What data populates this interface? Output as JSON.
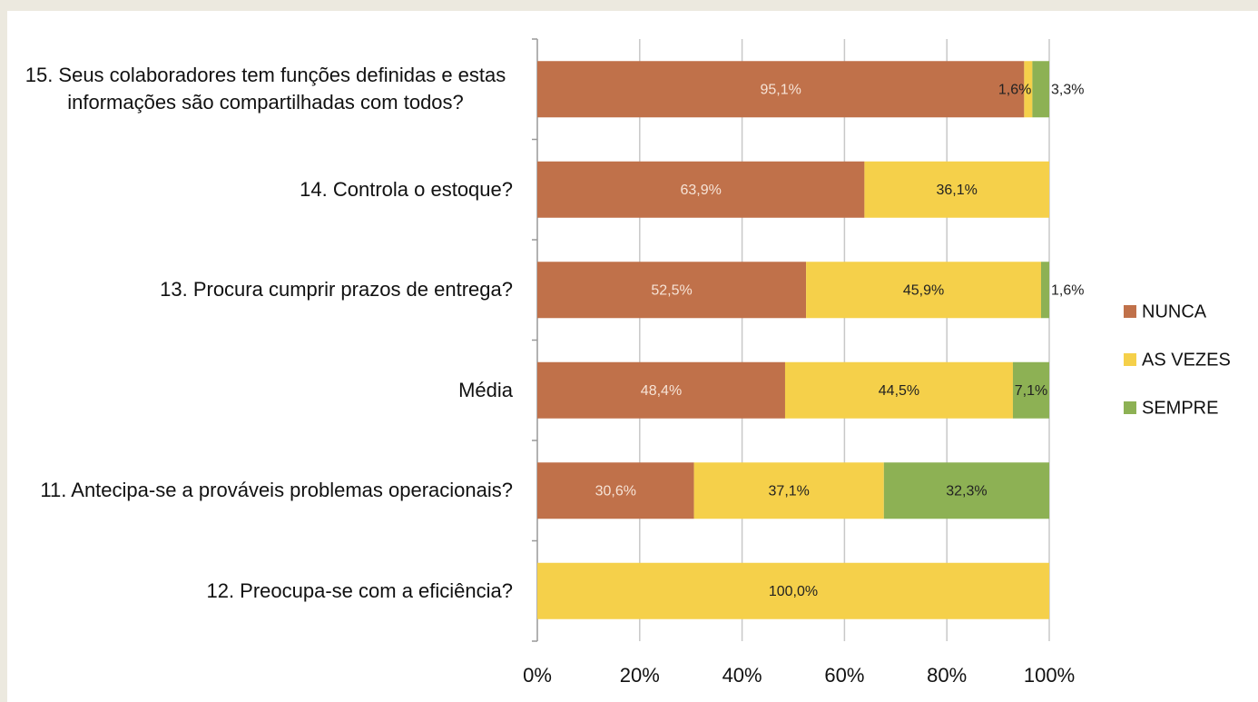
{
  "chart_data": {
    "type": "stacked-bar-horizontal",
    "categories": [
      "15. Seus colaboradores tem funções definidas e estas informações são compartilhadas com todos?",
      "14. Controla o estoque?",
      "13. Procura cumprir prazos de entrega?",
      "Média",
      "11. Antecipa-se a prováveis problemas operacionais?",
      "12. Preocupa-se com a eficiência?"
    ],
    "series": [
      {
        "name": "NUNCA",
        "color": "#c0714a",
        "values": [
          95.1,
          63.9,
          52.5,
          48.4,
          30.6,
          null
        ],
        "value_labels": [
          "95,1%",
          "63,9%",
          "52,5%",
          "48,4%",
          "30,6%",
          null
        ]
      },
      {
        "name": "AS VEZES",
        "color": "#f5d04a",
        "values": [
          1.6,
          36.1,
          45.9,
          44.5,
          37.1,
          100.0
        ],
        "value_labels": [
          "1,6%",
          "36,1%",
          "45,9%",
          "44,5%",
          "37,1%",
          "100,0%"
        ]
      },
      {
        "name": "SEMPRE",
        "color": "#8db154",
        "values": [
          3.3,
          null,
          1.6,
          7.1,
          32.3,
          null
        ],
        "value_labels": [
          "3,3%",
          null,
          "1,6%",
          "7,1%",
          "32,3%",
          null
        ]
      }
    ],
    "xlim": [
      0,
      100
    ],
    "xticks": [
      {
        "value": 0,
        "label": "0%"
      },
      {
        "value": 20,
        "label": "20%"
      },
      {
        "value": 40,
        "label": "40%"
      },
      {
        "value": 60,
        "label": "60%"
      },
      {
        "value": 80,
        "label": "80%"
      },
      {
        "value": 100,
        "label": "100%"
      }
    ],
    "grid": true,
    "legend": "right"
  }
}
